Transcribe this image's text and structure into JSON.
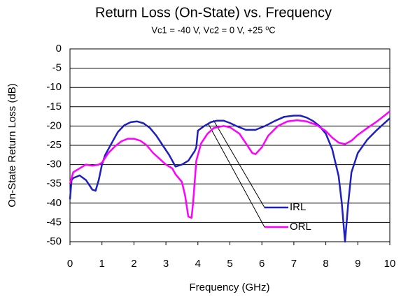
{
  "chart_data": {
    "type": "line",
    "title": "Return Loss (On-State) vs. Frequency",
    "subtitle": "Vc1 = -40 V, Vc2 = 0 V, +25 ⁰C",
    "x_label": "Frequency (GHz)",
    "y_label": "On-State Return Loss (dB)",
    "xlim": [
      0,
      10
    ],
    "xticks": [
      0,
      1,
      2,
      3,
      4,
      5,
      6,
      7,
      8,
      9,
      10
    ],
    "ylim": [
      -50,
      0
    ],
    "yticks": [
      0,
      -5,
      -10,
      -15,
      -20,
      -25,
      -30,
      -35,
      -40,
      -45,
      -50
    ],
    "grid": true,
    "series": [
      {
        "name": "IRL",
        "color": "#1f1fbf",
        "x": [
          0,
          0.05,
          0.1,
          0.3,
          0.5,
          0.7,
          0.8,
          0.9,
          1.0,
          1.1,
          1.3,
          1.5,
          1.7,
          1.9,
          2.1,
          2.3,
          2.5,
          2.7,
          2.9,
          3.1,
          3.3,
          3.5,
          3.7,
          3.9,
          3.95,
          4.0,
          4.2,
          4.4,
          4.6,
          4.8,
          5.0,
          5.2,
          5.5,
          5.8,
          6.1,
          6.4,
          6.7,
          7.0,
          7.2,
          7.4,
          7.6,
          7.8,
          8.0,
          8.2,
          8.4,
          8.5,
          8.6,
          8.7,
          8.8,
          9.0,
          9.3,
          9.6,
          9.8,
          10
        ],
        "values": [
          -39,
          -34,
          -33.5,
          -32.8,
          -34,
          -36.5,
          -36.8,
          -34,
          -30,
          -27.5,
          -24.5,
          -21.5,
          -19.8,
          -19,
          -18.8,
          -19.3,
          -20.5,
          -22.5,
          -25,
          -27.5,
          -30.5,
          -30,
          -29,
          -26.5,
          -25.5,
          -21.2,
          -20,
          -19,
          -18.6,
          -18.6,
          -19.2,
          -20,
          -21,
          -21,
          -20,
          -18.7,
          -17.6,
          -17.3,
          -17.3,
          -17.8,
          -18.7,
          -20,
          -22,
          -26,
          -33,
          -40,
          -50,
          -40,
          -32,
          -27,
          -23.5,
          -21,
          -19.5,
          -18
        ]
      },
      {
        "name": "ORL",
        "color": "#ff00ff",
        "x": [
          0,
          0.1,
          0.3,
          0.5,
          0.7,
          0.9,
          1.0,
          1.2,
          1.4,
          1.6,
          1.8,
          2.0,
          2.2,
          2.4,
          2.6,
          2.8,
          3.0,
          3.2,
          3.3,
          3.5,
          3.6,
          3.7,
          3.8,
          3.85,
          3.95,
          4.1,
          4.3,
          4.5,
          4.8,
          5.0,
          5.3,
          5.5,
          5.7,
          5.8,
          6.0,
          6.2,
          6.5,
          6.8,
          7.1,
          7.4,
          7.7,
          8.0,
          8.2,
          8.4,
          8.6,
          8.8,
          9.0,
          9.3,
          9.6,
          9.8,
          10
        ],
        "values": [
          -35,
          -32,
          -31,
          -30,
          -30.3,
          -30,
          -29.5,
          -27,
          -25.3,
          -24,
          -23.3,
          -23.3,
          -23.8,
          -25,
          -27,
          -28.5,
          -30,
          -31,
          -32.5,
          -34.5,
          -38,
          -43.5,
          -43.8,
          -40,
          -29,
          -24.5,
          -22,
          -20.5,
          -20,
          -20.3,
          -22,
          -24.5,
          -27,
          -27.3,
          -25.5,
          -22.5,
          -20,
          -18.8,
          -18.5,
          -18.8,
          -19.7,
          -21.3,
          -23,
          -24.3,
          -24.7,
          -23.8,
          -22.3,
          -20.5,
          -18.8,
          -17.5,
          -16.2
        ]
      }
    ]
  }
}
